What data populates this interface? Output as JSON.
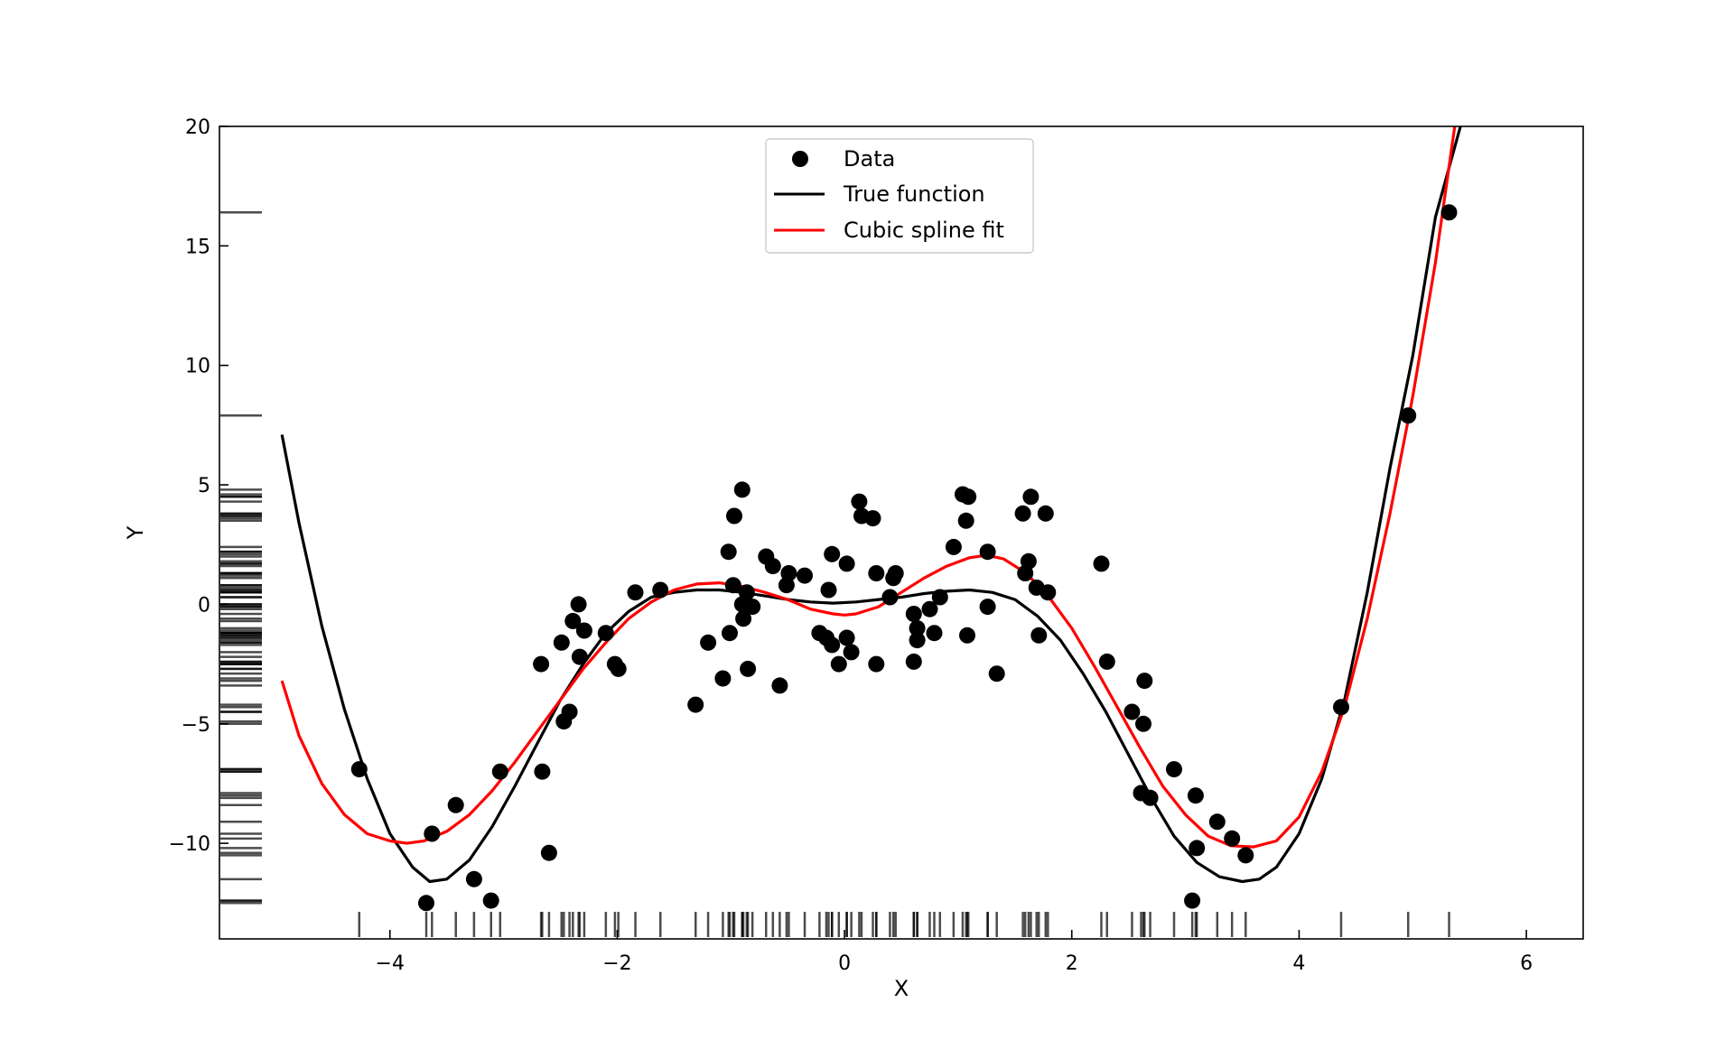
{
  "chart_data": {
    "type": "scatter",
    "title": "",
    "xlabel": "X",
    "ylabel": "Y",
    "xlim": [
      -5.5,
      6.5
    ],
    "ylim": [
      -14,
      20
    ],
    "xticks": [
      -4,
      -2,
      0,
      2,
      4,
      6
    ],
    "yticks": [
      -10,
      -5,
      0,
      5,
      10,
      15,
      20
    ],
    "xtick_labels": [
      "−4",
      "−2",
      "0",
      "2",
      "4",
      "6"
    ],
    "ytick_labels": [
      "−10",
      "−5",
      "0",
      "5",
      "10",
      "15",
      "20"
    ],
    "grid": false,
    "legend_position": "top-center",
    "series": [
      {
        "name": "Data",
        "kind": "scatter",
        "color": "#000000",
        "points": [
          [
            -4.27,
            -6.9
          ],
          [
            -3.68,
            -12.5
          ],
          [
            -3.63,
            -9.6
          ],
          [
            -3.42,
            -8.4
          ],
          [
            -3.26,
            -11.5
          ],
          [
            -3.11,
            -12.4
          ],
          [
            -3.03,
            -7.0
          ],
          [
            -2.67,
            -2.5
          ],
          [
            -2.66,
            -7.0
          ],
          [
            -2.6,
            -10.4
          ],
          [
            -2.49,
            -1.6
          ],
          [
            -2.47,
            -4.9
          ],
          [
            -2.42,
            -4.5
          ],
          [
            -2.39,
            -0.7
          ],
          [
            -2.34,
            0.0
          ],
          [
            -2.33,
            -2.2
          ],
          [
            -2.29,
            -1.1
          ],
          [
            -2.1,
            -1.2
          ],
          [
            -2.02,
            -2.5
          ],
          [
            -1.99,
            -2.7
          ],
          [
            -1.84,
            0.5
          ],
          [
            -1.62,
            0.6
          ],
          [
            -1.31,
            -4.2
          ],
          [
            -1.2,
            -1.6
          ],
          [
            -1.07,
            -3.1
          ],
          [
            -1.02,
            2.2
          ],
          [
            -1.01,
            -1.2
          ],
          [
            -0.98,
            0.8
          ],
          [
            -0.97,
            3.7
          ],
          [
            -0.9,
            4.8
          ],
          [
            -0.9,
            0.0
          ],
          [
            -0.89,
            -0.6
          ],
          [
            -0.86,
            0.5
          ],
          [
            -0.85,
            -2.7
          ],
          [
            -0.81,
            -0.1
          ],
          [
            -0.69,
            2.0
          ],
          [
            -0.63,
            1.6
          ],
          [
            -0.57,
            -3.4
          ],
          [
            -0.51,
            0.8
          ],
          [
            -0.49,
            1.3
          ],
          [
            -0.35,
            1.2
          ],
          [
            -0.22,
            -1.2
          ],
          [
            -0.16,
            -1.4
          ],
          [
            -0.14,
            0.6
          ],
          [
            -0.11,
            2.1
          ],
          [
            -0.11,
            -1.7
          ],
          [
            -0.05,
            -2.5
          ],
          [
            0.02,
            1.7
          ],
          [
            0.02,
            -1.4
          ],
          [
            0.06,
            -2.0
          ],
          [
            0.13,
            4.3
          ],
          [
            0.15,
            3.7
          ],
          [
            0.25,
            3.6
          ],
          [
            0.28,
            1.3
          ],
          [
            0.28,
            -2.5
          ],
          [
            0.4,
            0.3
          ],
          [
            0.43,
            1.1
          ],
          [
            0.45,
            1.3
          ],
          [
            0.61,
            -2.4
          ],
          [
            0.61,
            -0.4
          ],
          [
            0.64,
            -1.5
          ],
          [
            0.64,
            -1.0
          ],
          [
            0.75,
            -0.2
          ],
          [
            0.79,
            -1.2
          ],
          [
            0.84,
            0.3
          ],
          [
            0.96,
            2.4
          ],
          [
            1.04,
            4.6
          ],
          [
            1.07,
            3.5
          ],
          [
            1.08,
            -1.3
          ],
          [
            1.09,
            4.5
          ],
          [
            1.26,
            2.2
          ],
          [
            1.26,
            -0.1
          ],
          [
            1.34,
            -2.9
          ],
          [
            1.57,
            3.8
          ],
          [
            1.59,
            1.3
          ],
          [
            1.62,
            1.8
          ],
          [
            1.64,
            4.5
          ],
          [
            1.69,
            0.7
          ],
          [
            1.71,
            -1.3
          ],
          [
            1.77,
            3.8
          ],
          [
            1.79,
            0.5
          ],
          [
            2.26,
            1.7
          ],
          [
            2.31,
            -2.4
          ],
          [
            2.53,
            -4.5
          ],
          [
            2.61,
            -7.9
          ],
          [
            2.63,
            -5.0
          ],
          [
            2.64,
            -3.2
          ],
          [
            2.69,
            -8.1
          ],
          [
            2.9,
            -6.9
          ],
          [
            3.06,
            -12.4
          ],
          [
            3.09,
            -8.0
          ],
          [
            3.1,
            -10.2
          ],
          [
            3.28,
            -9.1
          ],
          [
            3.41,
            -9.8
          ],
          [
            3.53,
            -10.5
          ],
          [
            4.37,
            -4.3
          ],
          [
            4.96,
            7.9
          ],
          [
            5.32,
            16.4
          ]
        ]
      },
      {
        "name": "True function",
        "kind": "line",
        "color": "#000000",
        "points": [
          [
            -4.95,
            7.1
          ],
          [
            -4.8,
            3.4
          ],
          [
            -4.6,
            -0.9
          ],
          [
            -4.4,
            -4.4
          ],
          [
            -4.2,
            -7.3
          ],
          [
            -4.0,
            -9.6
          ],
          [
            -3.8,
            -11.0
          ],
          [
            -3.65,
            -11.6
          ],
          [
            -3.5,
            -11.5
          ],
          [
            -3.3,
            -10.7
          ],
          [
            -3.1,
            -9.3
          ],
          [
            -2.9,
            -7.6
          ],
          [
            -2.7,
            -5.8
          ],
          [
            -2.5,
            -4.0
          ],
          [
            -2.3,
            -2.5
          ],
          [
            -2.1,
            -1.2
          ],
          [
            -1.9,
            -0.3
          ],
          [
            -1.7,
            0.3
          ],
          [
            -1.5,
            0.5
          ],
          [
            -1.3,
            0.6
          ],
          [
            -1.1,
            0.6
          ],
          [
            -0.9,
            0.5
          ],
          [
            -0.7,
            0.35
          ],
          [
            -0.5,
            0.2
          ],
          [
            -0.3,
            0.1
          ],
          [
            -0.1,
            0.05
          ],
          [
            0.1,
            0.1
          ],
          [
            0.3,
            0.2
          ],
          [
            0.5,
            0.3
          ],
          [
            0.7,
            0.45
          ],
          [
            0.9,
            0.55
          ],
          [
            1.1,
            0.6
          ],
          [
            1.3,
            0.5
          ],
          [
            1.5,
            0.2
          ],
          [
            1.7,
            -0.5
          ],
          [
            1.9,
            -1.5
          ],
          [
            2.1,
            -2.9
          ],
          [
            2.3,
            -4.5
          ],
          [
            2.5,
            -6.3
          ],
          [
            2.7,
            -8.1
          ],
          [
            2.9,
            -9.7
          ],
          [
            3.1,
            -10.8
          ],
          [
            3.3,
            -11.4
          ],
          [
            3.5,
            -11.6
          ],
          [
            3.65,
            -11.5
          ],
          [
            3.8,
            -11.0
          ],
          [
            4.0,
            -9.6
          ],
          [
            4.2,
            -7.3
          ],
          [
            4.4,
            -4.0
          ],
          [
            4.6,
            0.5
          ],
          [
            4.8,
            5.7
          ],
          [
            5.0,
            10.4
          ],
          [
            5.2,
            16.2
          ],
          [
            5.42,
            20.0
          ]
        ]
      },
      {
        "name": "Cubic spline fit",
        "kind": "line",
        "color": "#ff0000",
        "points": [
          [
            -4.95,
            -3.2
          ],
          [
            -4.8,
            -5.5
          ],
          [
            -4.6,
            -7.5
          ],
          [
            -4.4,
            -8.8
          ],
          [
            -4.2,
            -9.6
          ],
          [
            -4.0,
            -9.9
          ],
          [
            -3.85,
            -10.0
          ],
          [
            -3.7,
            -9.9
          ],
          [
            -3.5,
            -9.5
          ],
          [
            -3.3,
            -8.8
          ],
          [
            -3.1,
            -7.8
          ],
          [
            -2.9,
            -6.6
          ],
          [
            -2.7,
            -5.3
          ],
          [
            -2.5,
            -4.0
          ],
          [
            -2.3,
            -2.7
          ],
          [
            -2.1,
            -1.6
          ],
          [
            -1.9,
            -0.6
          ],
          [
            -1.7,
            0.1
          ],
          [
            -1.5,
            0.6
          ],
          [
            -1.3,
            0.85
          ],
          [
            -1.1,
            0.9
          ],
          [
            -0.9,
            0.75
          ],
          [
            -0.7,
            0.5
          ],
          [
            -0.5,
            0.2
          ],
          [
            -0.3,
            -0.2
          ],
          [
            -0.1,
            -0.4
          ],
          [
            0.0,
            -0.45
          ],
          [
            0.1,
            -0.4
          ],
          [
            0.3,
            -0.1
          ],
          [
            0.5,
            0.5
          ],
          [
            0.7,
            1.1
          ],
          [
            0.9,
            1.6
          ],
          [
            1.1,
            1.95
          ],
          [
            1.25,
            2.05
          ],
          [
            1.4,
            1.9
          ],
          [
            1.6,
            1.3
          ],
          [
            1.8,
            0.3
          ],
          [
            2.0,
            -1.0
          ],
          [
            2.2,
            -2.6
          ],
          [
            2.4,
            -4.3
          ],
          [
            2.6,
            -6.0
          ],
          [
            2.8,
            -7.6
          ],
          [
            3.0,
            -8.8
          ],
          [
            3.2,
            -9.7
          ],
          [
            3.4,
            -10.1
          ],
          [
            3.6,
            -10.15
          ],
          [
            3.8,
            -9.9
          ],
          [
            4.0,
            -8.9
          ],
          [
            4.2,
            -7.0
          ],
          [
            4.4,
            -4.3
          ],
          [
            4.6,
            -0.6
          ],
          [
            4.8,
            3.8
          ],
          [
            5.0,
            8.7
          ],
          [
            5.2,
            14.3
          ],
          [
            5.37,
            20.0
          ]
        ]
      }
    ]
  }
}
